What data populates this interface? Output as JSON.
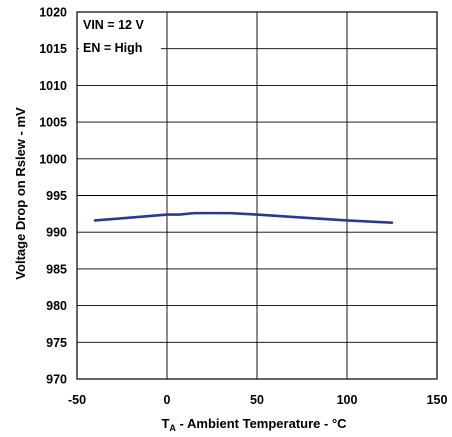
{
  "chart_data": {
    "type": "line",
    "xlabel_main": "T",
    "xlabel_sub": "A",
    "xlabel_rest": " - Ambient Temperature - °C",
    "ylabel": "Voltage Drop on Rslew - mV",
    "xlim": [
      -50,
      150
    ],
    "ylim": [
      970,
      1020
    ],
    "x_ticks": [
      -50,
      0,
      50,
      100,
      150
    ],
    "y_ticks": [
      970,
      975,
      980,
      985,
      990,
      995,
      1000,
      1005,
      1010,
      1015,
      1020
    ],
    "grid": true,
    "annotations": [
      "VIN = 12 V",
      "EN = High"
    ],
    "series": [
      {
        "color": "#2b3990",
        "x": [
          -40,
          -20,
          0,
          7,
          15,
          25,
          35,
          50,
          75,
          100,
          125
        ],
        "y": [
          991.6,
          992.0,
          992.4,
          992.4,
          992.6,
          992.6,
          992.6,
          992.4,
          992.0,
          991.6,
          991.3
        ]
      }
    ]
  }
}
